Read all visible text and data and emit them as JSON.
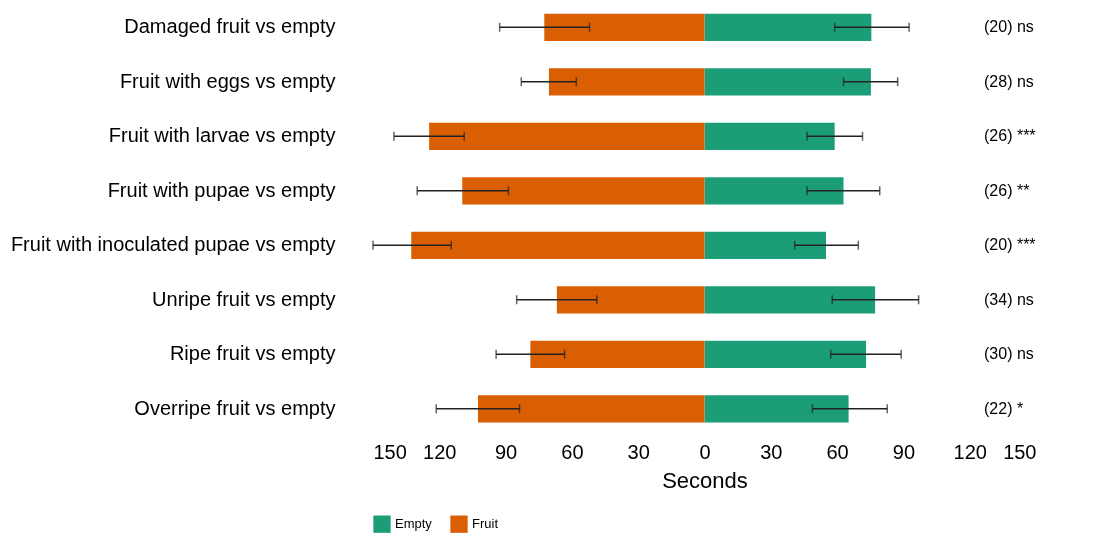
{
  "chart_data": {
    "type": "bar",
    "orientation": "horizontal",
    "xlabel": "Seconds",
    "categories": [
      "Damaged fruit vs empty",
      "Fruit with eggs vs empty",
      "Fruit with larvae vs empty",
      "Fruit with pupae vs empty",
      "Fruit with inoculated pupae vs empty",
      "Unripe fruit vs empty",
      "Ripe fruit vs empty",
      "Overripe fruit vs empty"
    ],
    "series": [
      {
        "name": "Empty",
        "color": "#1b9e77",
        "values": [
          75.5,
          75.3,
          58.9,
          62.9,
          55,
          77.2,
          73.1,
          65.2
        ],
        "errors": [
          [
            58.9,
            92.6
          ],
          [
            62.9,
            87.4
          ],
          [
            46.4,
            71.5
          ],
          [
            46.4,
            79.3
          ],
          [
            40.8,
            69.6
          ],
          [
            57.8,
            96.9
          ],
          [
            57.1,
            89
          ],
          [
            48.8,
            82.7
          ]
        ]
      },
      {
        "name": "Fruit",
        "color": "#d95f02",
        "values": [
          -72.5,
          -70.4,
          -124.6,
          -109.6,
          -132.7,
          -66.8,
          -78.8,
          -102.5
        ],
        "errors": [
          [
            -92.7,
            -52
          ],
          [
            -82.9,
            -58
          ],
          [
            -140.5,
            -108.7
          ],
          [
            -130,
            -88.7
          ],
          [
            -150,
            -114.6
          ],
          [
            -85,
            -48.7
          ],
          [
            -94.3,
            -63.3
          ],
          [
            -121.4,
            -83.7
          ]
        ]
      }
    ],
    "xlim": [
      -150,
      150
    ],
    "xticks": [
      {
        "value": -150,
        "label": "150"
      },
      {
        "value": -120,
        "label": "120"
      },
      {
        "value": -90,
        "label": "90"
      },
      {
        "value": -60,
        "label": "60"
      },
      {
        "value": -30,
        "label": "30"
      },
      0,
      30,
      60,
      90,
      120,
      150
    ],
    "annotations": [
      "(20)  ns",
      "(28)  ns",
      "(26)  ***",
      "(26)  **",
      "(20)  ***",
      "(34)  ns",
      "(30)  ns",
      "(22)  *"
    ],
    "stacked": true,
    "grid": false,
    "legend": "bottom"
  }
}
